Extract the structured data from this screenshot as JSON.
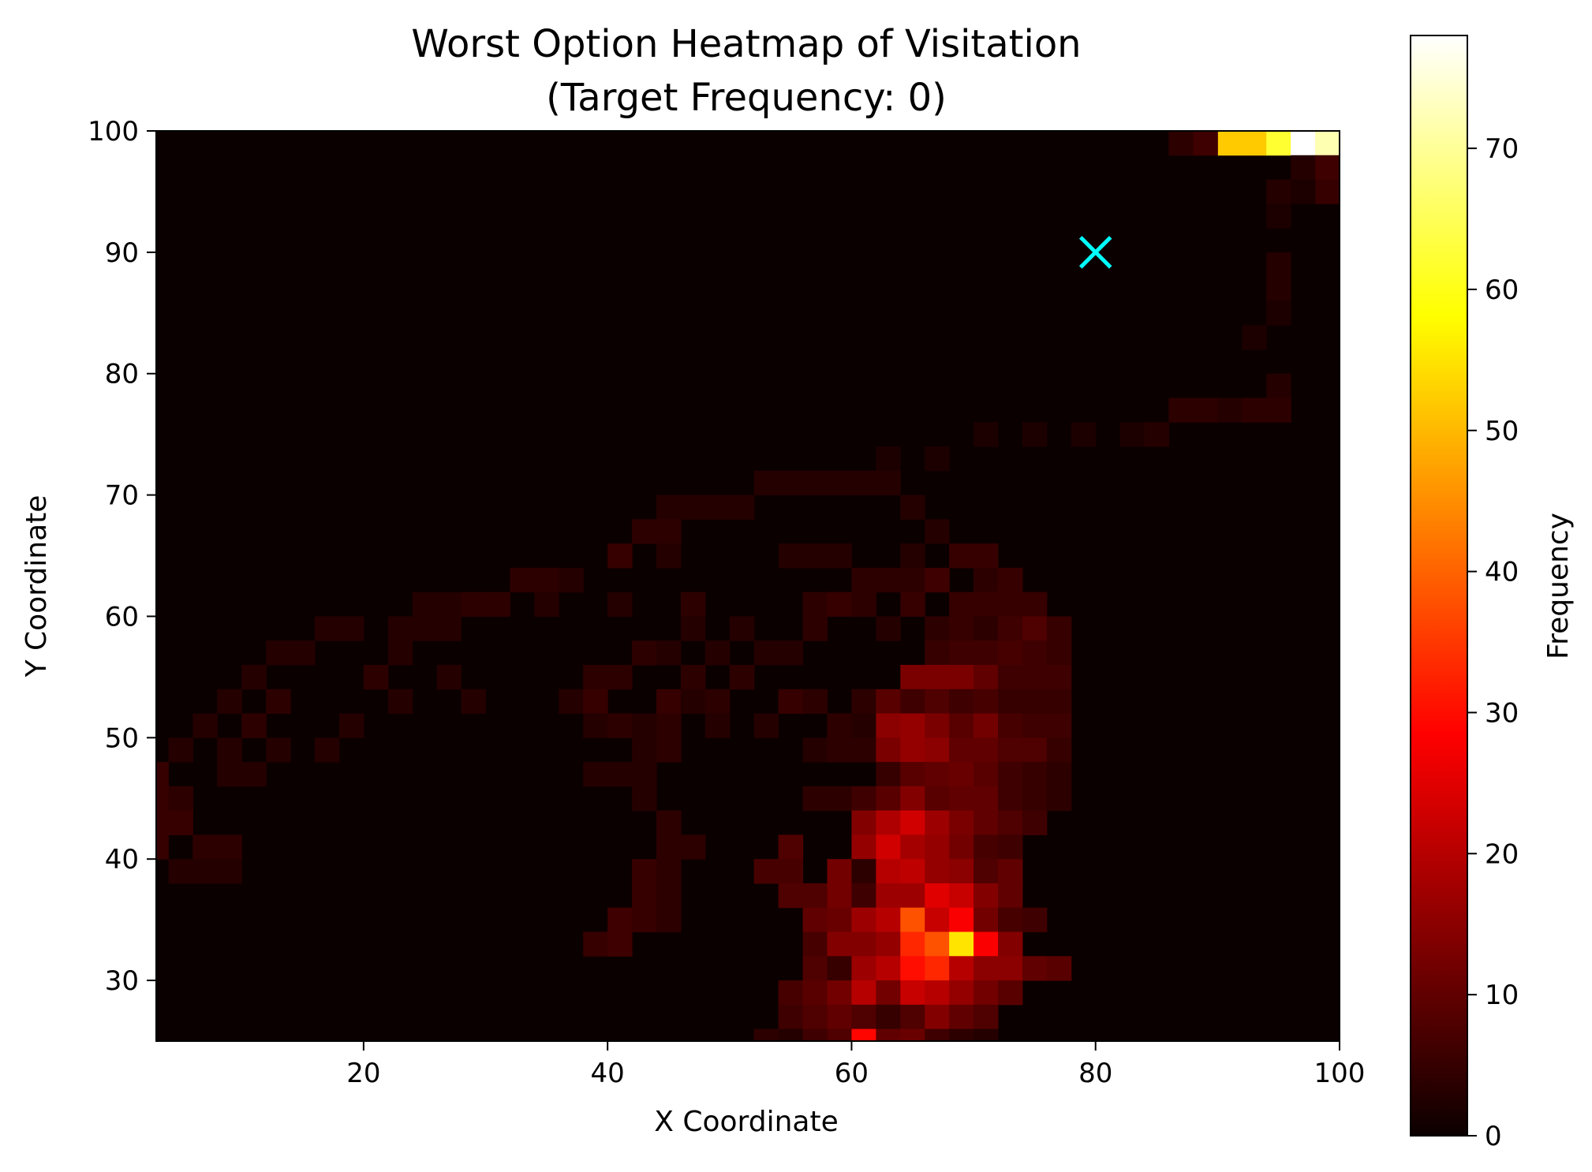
{
  "chart_data": {
    "type": "heatmap",
    "title_line1": "Worst Option Heatmap of Visitation",
    "title_line2": "(Target Frequency: 0)",
    "xlabel": "X Coordinate",
    "ylabel": "Y Coordinate",
    "colorbar_label": "Frequency",
    "colormap": "hot",
    "xlim": [
      3,
      100
    ],
    "ylim": [
      25,
      100
    ],
    "vlim": [
      0,
      78
    ],
    "x_ticks": [
      20,
      40,
      60,
      80,
      100
    ],
    "y_ticks": [
      30,
      40,
      50,
      60,
      70,
      80,
      90,
      100
    ],
    "colorbar_ticks": [
      0,
      10,
      20,
      30,
      40,
      50,
      60,
      70
    ],
    "bin_size": 2,
    "marker": {
      "x": 80,
      "y": 90,
      "symbol": "x",
      "color": "#00ffff"
    },
    "cells": [
      [
        91,
        99,
        52
      ],
      [
        93,
        99,
        52
      ],
      [
        95,
        99,
        62
      ],
      [
        97,
        99,
        78
      ],
      [
        99,
        99,
        72
      ],
      [
        87,
        99,
        4
      ],
      [
        89,
        99,
        6
      ],
      [
        97,
        97,
        3
      ],
      [
        99,
        97,
        6
      ],
      [
        99,
        95,
        5
      ],
      [
        95,
        95,
        3
      ],
      [
        97,
        95,
        2
      ],
      [
        95,
        93,
        2
      ],
      [
        95,
        89,
        3
      ],
      [
        95,
        87,
        3
      ],
      [
        95,
        85,
        2
      ],
      [
        93,
        83,
        2
      ],
      [
        95,
        79,
        3
      ],
      [
        87,
        77,
        4
      ],
      [
        89,
        77,
        4
      ],
      [
        91,
        77,
        3
      ],
      [
        93,
        77,
        4
      ],
      [
        95,
        77,
        4
      ],
      [
        71,
        75,
        2
      ],
      [
        75,
        75,
        2
      ],
      [
        79,
        75,
        2
      ],
      [
        83,
        75,
        2
      ],
      [
        85,
        75,
        3
      ],
      [
        63,
        73,
        2
      ],
      [
        67,
        73,
        2
      ],
      [
        53,
        71,
        3
      ],
      [
        55,
        71,
        3
      ],
      [
        57,
        71,
        3
      ],
      [
        59,
        71,
        3
      ],
      [
        61,
        71,
        3
      ],
      [
        63,
        71,
        3
      ],
      [
        45,
        69,
        3
      ],
      [
        47,
        69,
        3
      ],
      [
        49,
        69,
        3
      ],
      [
        51,
        69,
        3
      ],
      [
        65,
        69,
        3
      ],
      [
        43,
        67,
        4
      ],
      [
        45,
        67,
        4
      ],
      [
        67,
        67,
        3
      ],
      [
        41,
        65,
        5
      ],
      [
        45,
        65,
        3
      ],
      [
        55,
        65,
        3
      ],
      [
        57,
        65,
        3
      ],
      [
        59,
        65,
        3
      ],
      [
        65,
        65,
        3
      ],
      [
        69,
        65,
        5
      ],
      [
        71,
        65,
        5
      ],
      [
        33,
        63,
        4
      ],
      [
        35,
        63,
        4
      ],
      [
        37,
        63,
        3
      ],
      [
        61,
        63,
        4
      ],
      [
        63,
        63,
        4
      ],
      [
        65,
        63,
        4
      ],
      [
        67,
        63,
        6
      ],
      [
        71,
        63,
        4
      ],
      [
        73,
        63,
        5
      ],
      [
        25,
        61,
        3
      ],
      [
        27,
        61,
        3
      ],
      [
        29,
        61,
        4
      ],
      [
        31,
        61,
        4
      ],
      [
        35,
        61,
        3
      ],
      [
        41,
        61,
        3
      ],
      [
        47,
        61,
        4
      ],
      [
        57,
        61,
        4
      ],
      [
        59,
        61,
        5
      ],
      [
        61,
        61,
        4
      ],
      [
        65,
        61,
        5
      ],
      [
        69,
        61,
        5
      ],
      [
        71,
        61,
        5
      ],
      [
        73,
        61,
        5
      ],
      [
        75,
        61,
        5
      ],
      [
        17,
        59,
        3
      ],
      [
        19,
        59,
        3
      ],
      [
        23,
        59,
        3
      ],
      [
        25,
        59,
        3
      ],
      [
        27,
        59,
        3
      ],
      [
        47,
        59,
        3
      ],
      [
        51,
        59,
        3
      ],
      [
        57,
        59,
        4
      ],
      [
        63,
        59,
        3
      ],
      [
        67,
        59,
        4
      ],
      [
        69,
        59,
        5
      ],
      [
        71,
        59,
        4
      ],
      [
        73,
        59,
        6
      ],
      [
        75,
        59,
        8
      ],
      [
        77,
        59,
        5
      ],
      [
        13,
        57,
        3
      ],
      [
        15,
        57,
        3
      ],
      [
        23,
        57,
        3
      ],
      [
        43,
        57,
        4
      ],
      [
        45,
        57,
        3
      ],
      [
        49,
        57,
        3
      ],
      [
        53,
        57,
        3
      ],
      [
        55,
        57,
        3
      ],
      [
        67,
        57,
        5
      ],
      [
        69,
        57,
        6
      ],
      [
        71,
        57,
        6
      ],
      [
        73,
        57,
        7
      ],
      [
        75,
        57,
        6
      ],
      [
        77,
        57,
        5
      ],
      [
        11,
        55,
        3
      ],
      [
        21,
        55,
        4
      ],
      [
        27,
        55,
        3
      ],
      [
        39,
        55,
        4
      ],
      [
        41,
        55,
        4
      ],
      [
        47,
        55,
        4
      ],
      [
        51,
        55,
        4
      ],
      [
        65,
        55,
        13
      ],
      [
        67,
        55,
        13
      ],
      [
        69,
        55,
        13
      ],
      [
        71,
        55,
        10
      ],
      [
        73,
        55,
        6
      ],
      [
        75,
        55,
        6
      ],
      [
        77,
        55,
        6
      ],
      [
        9,
        53,
        3
      ],
      [
        13,
        53,
        4
      ],
      [
        23,
        53,
        3
      ],
      [
        29,
        53,
        3
      ],
      [
        37,
        53,
        3
      ],
      [
        39,
        53,
        5
      ],
      [
        45,
        53,
        5
      ],
      [
        47,
        53,
        3
      ],
      [
        49,
        53,
        4
      ],
      [
        55,
        53,
        5
      ],
      [
        57,
        53,
        4
      ],
      [
        61,
        53,
        4
      ],
      [
        63,
        53,
        9
      ],
      [
        65,
        53,
        6
      ],
      [
        67,
        53,
        8
      ],
      [
        69,
        53,
        6
      ],
      [
        71,
        53,
        7
      ],
      [
        73,
        53,
        5
      ],
      [
        75,
        53,
        5
      ],
      [
        77,
        53,
        5
      ],
      [
        7,
        51,
        3
      ],
      [
        11,
        51,
        4
      ],
      [
        19,
        51,
        3
      ],
      [
        39,
        51,
        3
      ],
      [
        41,
        51,
        4
      ],
      [
        43,
        51,
        3
      ],
      [
        45,
        51,
        4
      ],
      [
        49,
        51,
        3
      ],
      [
        53,
        51,
        3
      ],
      [
        59,
        51,
        4
      ],
      [
        61,
        51,
        3
      ],
      [
        63,
        51,
        15
      ],
      [
        65,
        51,
        16
      ],
      [
        67,
        51,
        13
      ],
      [
        69,
        51,
        9
      ],
      [
        71,
        51,
        12
      ],
      [
        73,
        51,
        7
      ],
      [
        75,
        51,
        6
      ],
      [
        77,
        51,
        6
      ],
      [
        5,
        49,
        3
      ],
      [
        9,
        49,
        3
      ],
      [
        13,
        49,
        3
      ],
      [
        17,
        49,
        3
      ],
      [
        43,
        49,
        3
      ],
      [
        45,
        49,
        4
      ],
      [
        57,
        49,
        3
      ],
      [
        59,
        49,
        4
      ],
      [
        61,
        49,
        4
      ],
      [
        63,
        49,
        13
      ],
      [
        65,
        49,
        16
      ],
      [
        67,
        49,
        15
      ],
      [
        69,
        49,
        10
      ],
      [
        71,
        49,
        10
      ],
      [
        73,
        49,
        8
      ],
      [
        75,
        49,
        8
      ],
      [
        77,
        49,
        5
      ],
      [
        3,
        47,
        5
      ],
      [
        9,
        47,
        3
      ],
      [
        11,
        47,
        3
      ],
      [
        39,
        47,
        3
      ],
      [
        41,
        47,
        3
      ],
      [
        43,
        47,
        3
      ],
      [
        63,
        47,
        5
      ],
      [
        65,
        47,
        9
      ],
      [
        67,
        47,
        10
      ],
      [
        69,
        47,
        11
      ],
      [
        71,
        47,
        9
      ],
      [
        73,
        47,
        6
      ],
      [
        75,
        47,
        5
      ],
      [
        77,
        47,
        4
      ],
      [
        3,
        45,
        5
      ],
      [
        5,
        45,
        4
      ],
      [
        43,
        45,
        3
      ],
      [
        57,
        45,
        4
      ],
      [
        59,
        45,
        4
      ],
      [
        61,
        45,
        6
      ],
      [
        63,
        45,
        9
      ],
      [
        65,
        45,
        14
      ],
      [
        67,
        45,
        9
      ],
      [
        69,
        45,
        10
      ],
      [
        71,
        45,
        10
      ],
      [
        73,
        45,
        6
      ],
      [
        75,
        45,
        5
      ],
      [
        77,
        45,
        4
      ],
      [
        3,
        43,
        5
      ],
      [
        5,
        43,
        5
      ],
      [
        45,
        43,
        4
      ],
      [
        61,
        43,
        14
      ],
      [
        63,
        43,
        19
      ],
      [
        65,
        43,
        23
      ],
      [
        67,
        43,
        17
      ],
      [
        69,
        43,
        13
      ],
      [
        71,
        43,
        10
      ],
      [
        73,
        43,
        8
      ],
      [
        75,
        43,
        6
      ],
      [
        3,
        41,
        5
      ],
      [
        7,
        41,
        4
      ],
      [
        9,
        41,
        4
      ],
      [
        45,
        41,
        4
      ],
      [
        47,
        41,
        4
      ],
      [
        55,
        41,
        8
      ],
      [
        61,
        41,
        16
      ],
      [
        63,
        41,
        23
      ],
      [
        65,
        41,
        18
      ],
      [
        67,
        41,
        16
      ],
      [
        69,
        41,
        12
      ],
      [
        71,
        41,
        7
      ],
      [
        73,
        41,
        6
      ],
      [
        5,
        39,
        3
      ],
      [
        7,
        39,
        3
      ],
      [
        9,
        39,
        3
      ],
      [
        43,
        39,
        5
      ],
      [
        45,
        39,
        4
      ],
      [
        53,
        39,
        7
      ],
      [
        55,
        39,
        7
      ],
      [
        59,
        39,
        12
      ],
      [
        61,
        39,
        4
      ],
      [
        63,
        39,
        20
      ],
      [
        65,
        39,
        21
      ],
      [
        67,
        39,
        16
      ],
      [
        69,
        39,
        15
      ],
      [
        71,
        39,
        8
      ],
      [
        73,
        39,
        10
      ],
      [
        43,
        37,
        5
      ],
      [
        45,
        37,
        4
      ],
      [
        55,
        37,
        8
      ],
      [
        57,
        37,
        8
      ],
      [
        59,
        37,
        12
      ],
      [
        61,
        37,
        6
      ],
      [
        63,
        37,
        17
      ],
      [
        65,
        37,
        17
      ],
      [
        67,
        37,
        25
      ],
      [
        69,
        37,
        22
      ],
      [
        71,
        37,
        14
      ],
      [
        73,
        37,
        10
      ],
      [
        41,
        35,
        6
      ],
      [
        43,
        35,
        5
      ],
      [
        45,
        35,
        4
      ],
      [
        57,
        35,
        10
      ],
      [
        59,
        35,
        11
      ],
      [
        61,
        35,
        17
      ],
      [
        63,
        35,
        20
      ],
      [
        65,
        35,
        38
      ],
      [
        67,
        35,
        22
      ],
      [
        69,
        35,
        28
      ],
      [
        71,
        35,
        12
      ],
      [
        73,
        35,
        7
      ],
      [
        75,
        35,
        6
      ],
      [
        39,
        33,
        5
      ],
      [
        41,
        33,
        6
      ],
      [
        57,
        33,
        7
      ],
      [
        59,
        33,
        14
      ],
      [
        61,
        33,
        14
      ],
      [
        63,
        33,
        16
      ],
      [
        65,
        33,
        33
      ],
      [
        67,
        33,
        38
      ],
      [
        69,
        33,
        55
      ],
      [
        71,
        33,
        28
      ],
      [
        73,
        33,
        14
      ],
      [
        57,
        31,
        8
      ],
      [
        59,
        31,
        5
      ],
      [
        61,
        31,
        17
      ],
      [
        63,
        31,
        20
      ],
      [
        65,
        31,
        30
      ],
      [
        67,
        31,
        33
      ],
      [
        69,
        31,
        20
      ],
      [
        71,
        31,
        15
      ],
      [
        73,
        31,
        15
      ],
      [
        75,
        31,
        10
      ],
      [
        77,
        31,
        9
      ],
      [
        55,
        29,
        7
      ],
      [
        57,
        29,
        9
      ],
      [
        59,
        29,
        12
      ],
      [
        61,
        29,
        20
      ],
      [
        63,
        29,
        12
      ],
      [
        65,
        29,
        22
      ],
      [
        67,
        29,
        20
      ],
      [
        69,
        29,
        16
      ],
      [
        71,
        29,
        12
      ],
      [
        73,
        29,
        9
      ],
      [
        55,
        27,
        6
      ],
      [
        57,
        27,
        8
      ],
      [
        59,
        27,
        10
      ],
      [
        61,
        27,
        8
      ],
      [
        63,
        27,
        5
      ],
      [
        65,
        27,
        8
      ],
      [
        67,
        27,
        14
      ],
      [
        69,
        27,
        10
      ],
      [
        71,
        27,
        8
      ],
      [
        53,
        25,
        4
      ],
      [
        55,
        25,
        3
      ],
      [
        57,
        25,
        6
      ],
      [
        59,
        25,
        8
      ],
      [
        61,
        25,
        29
      ],
      [
        63,
        25,
        10
      ],
      [
        65,
        25,
        11
      ],
      [
        67,
        25,
        6
      ],
      [
        69,
        25,
        4
      ],
      [
        71,
        25,
        3
      ],
      [
        51,
        23,
        3
      ],
      [
        53,
        23,
        3
      ],
      [
        55,
        23,
        6
      ],
      [
        57,
        23,
        11
      ],
      [
        59,
        23,
        9
      ],
      [
        61,
        23,
        11
      ],
      [
        63,
        23,
        7
      ],
      [
        65,
        23,
        12
      ],
      [
        67,
        23,
        7
      ],
      [
        69,
        23,
        5
      ],
      [
        45,
        21,
        4
      ],
      [
        47,
        21,
        4
      ],
      [
        49,
        21,
        4
      ],
      [
        51,
        21,
        6
      ],
      [
        53,
        21,
        8
      ],
      [
        55,
        21,
        12
      ],
      [
        57,
        21,
        10
      ],
      [
        59,
        21,
        9
      ],
      [
        61,
        21,
        12
      ],
      [
        63,
        21,
        18
      ],
      [
        65,
        21,
        8
      ],
      [
        67,
        21,
        5
      ]
    ]
  }
}
